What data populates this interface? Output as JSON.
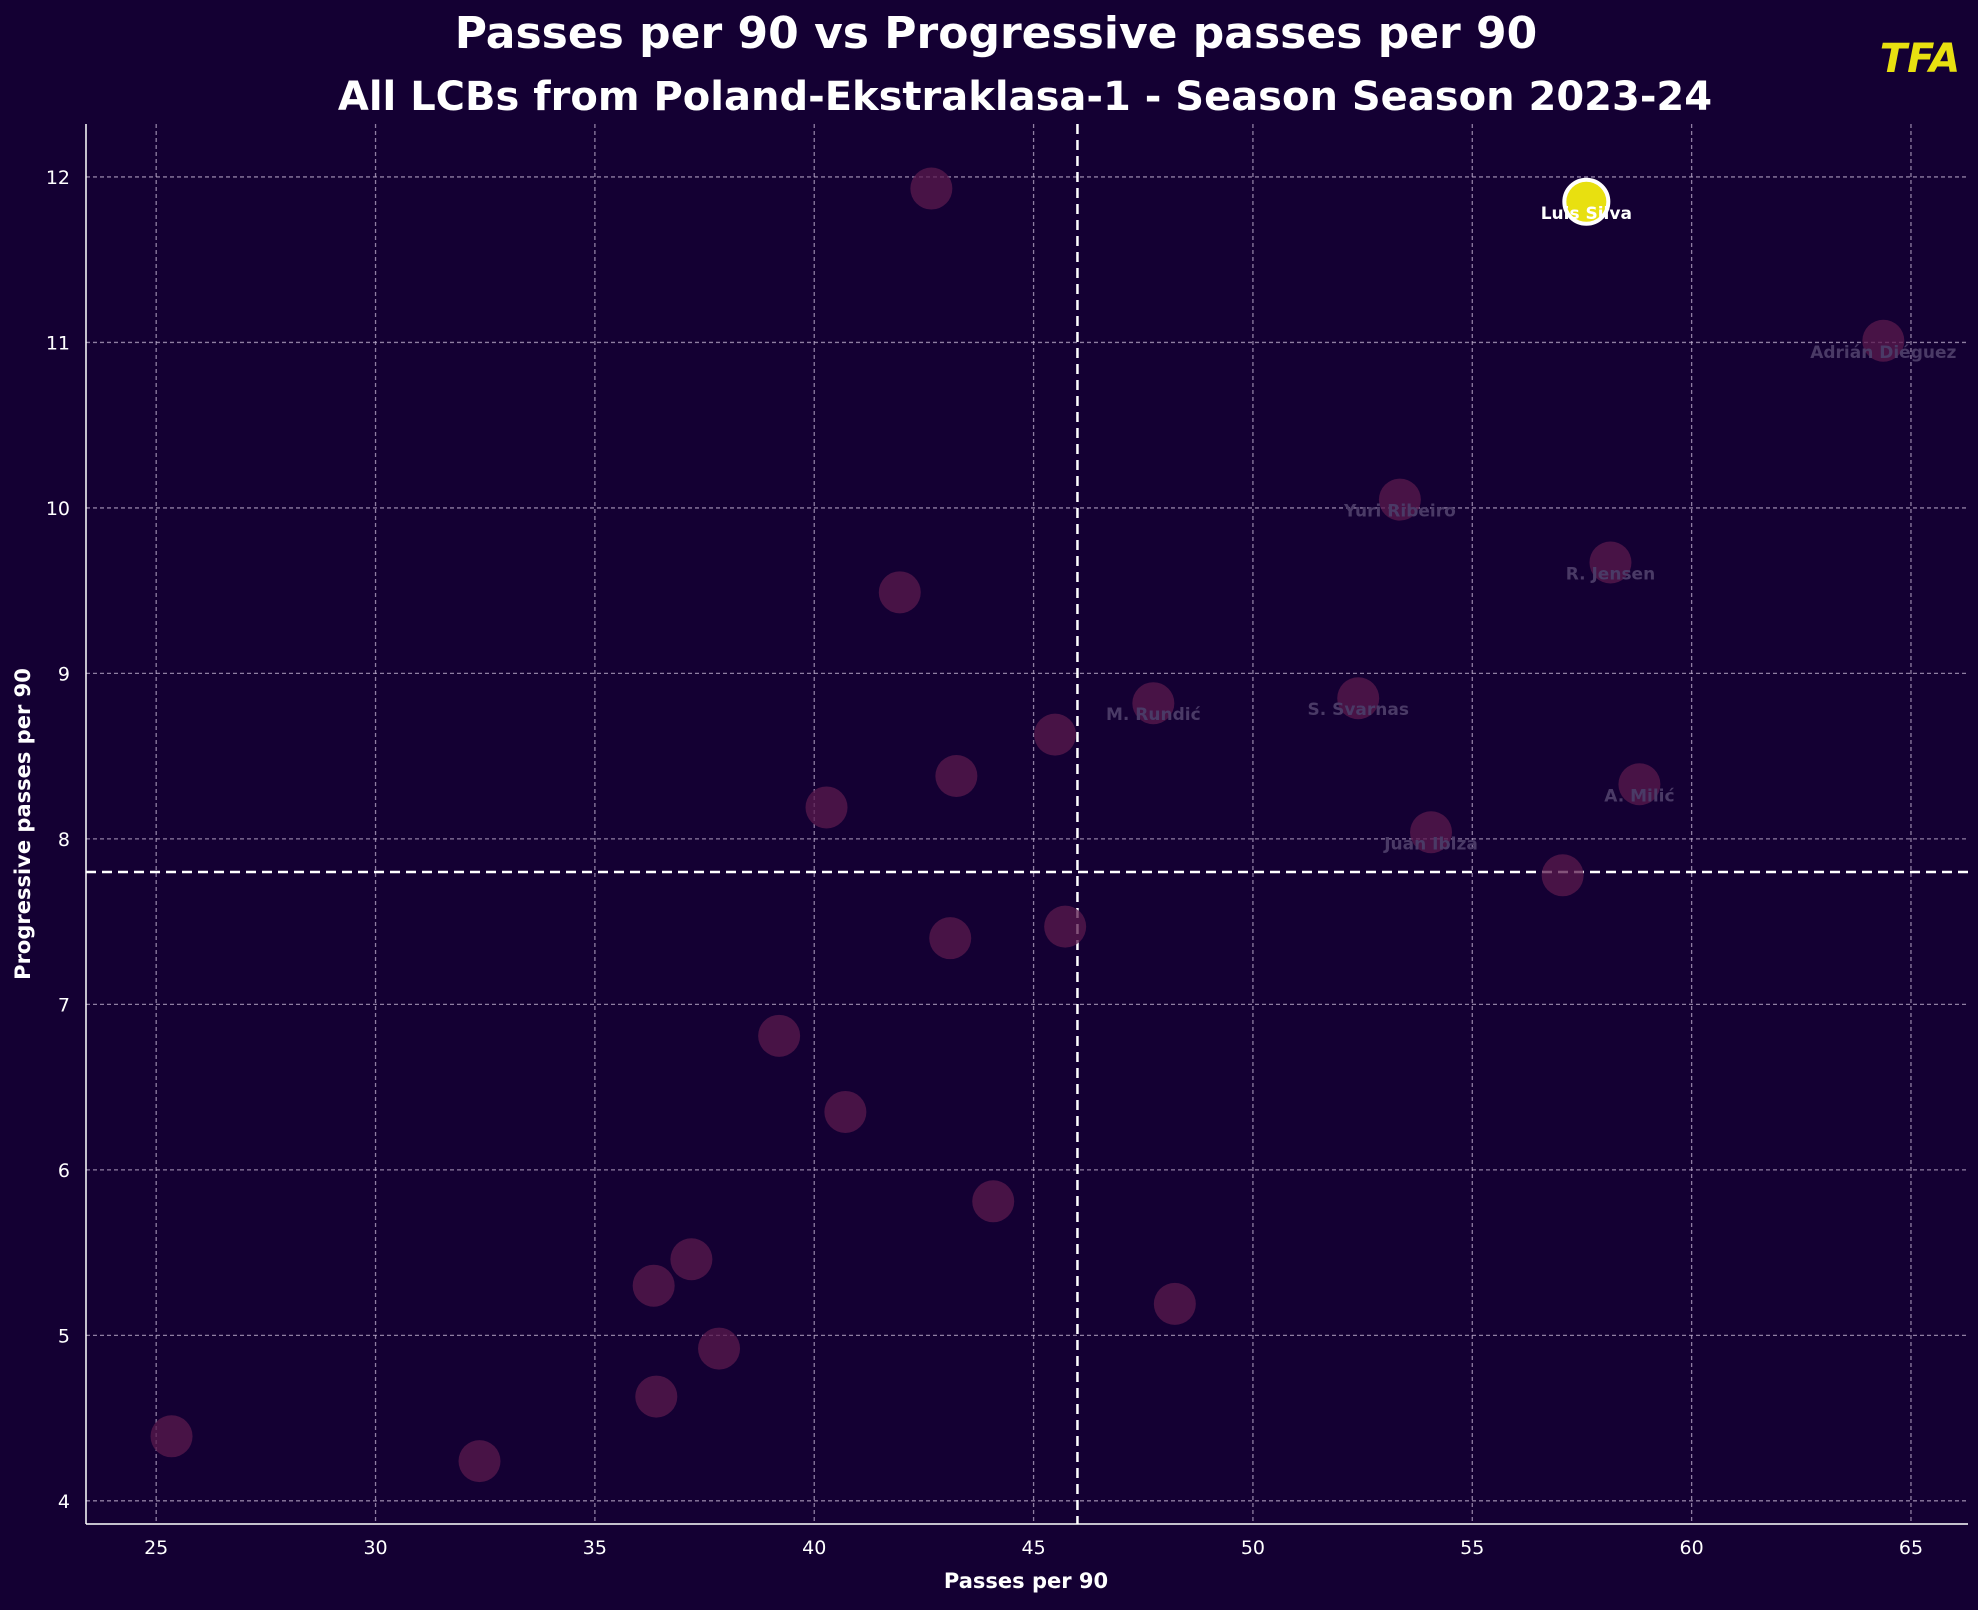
{
  "chart_data": {
    "type": "scatter",
    "title": "Passes per 90 vs Progressive passes per 90",
    "subtitle": "All LCBs from Poland-Ekstraklasa-1 - Season Season 2023-24",
    "xlabel": "Passes per 90",
    "ylabel": "Progressive passes per 90",
    "xlim": [
      23.4,
      66.3
    ],
    "ylim": [
      3.86,
      12.32
    ],
    "xticks": [
      25,
      30,
      35,
      40,
      45,
      50,
      55,
      60,
      65
    ],
    "yticks": [
      4,
      5,
      6,
      7,
      8,
      9,
      10,
      11,
      12
    ],
    "grid": true,
    "mean_x": 46.0,
    "mean_y": 7.8,
    "logo": "TFA",
    "colors": {
      "background": "#140033",
      "point": "#5a1a4e",
      "highlight": "#e8e010",
      "label": "#4a3a66",
      "text": "#ffffff"
    },
    "points": [
      {
        "x": 57.6,
        "y": 11.85,
        "label": "Luis Silva",
        "highlight": true
      },
      {
        "x": 42.67,
        "y": 11.93,
        "label": ""
      },
      {
        "x": 64.37,
        "y": 11.01,
        "label": "Adrián Diéguez"
      },
      {
        "x": 53.35,
        "y": 10.05,
        "label": "Yuri Ribeiro"
      },
      {
        "x": 58.15,
        "y": 9.67,
        "label": "R. Jensen"
      },
      {
        "x": 41.95,
        "y": 9.49,
        "label": ""
      },
      {
        "x": 47.73,
        "y": 8.82,
        "label": "M. Rundić"
      },
      {
        "x": 52.4,
        "y": 8.85,
        "label": "S. Svarnas"
      },
      {
        "x": 45.49,
        "y": 8.63,
        "label": ""
      },
      {
        "x": 43.24,
        "y": 8.38,
        "label": ""
      },
      {
        "x": 58.81,
        "y": 8.33,
        "label": "A. Milić"
      },
      {
        "x": 40.28,
        "y": 8.19,
        "label": ""
      },
      {
        "x": 54.06,
        "y": 8.04,
        "label": "Juan Ibiza"
      },
      {
        "x": 57.06,
        "y": 7.78,
        "label": ""
      },
      {
        "x": 45.72,
        "y": 7.47,
        "label": ""
      },
      {
        "x": 43.1,
        "y": 7.4,
        "label": ""
      },
      {
        "x": 39.2,
        "y": 6.81,
        "label": ""
      },
      {
        "x": 40.71,
        "y": 6.35,
        "label": ""
      },
      {
        "x": 44.08,
        "y": 5.81,
        "label": ""
      },
      {
        "x": 37.2,
        "y": 5.46,
        "label": ""
      },
      {
        "x": 36.34,
        "y": 5.3,
        "label": ""
      },
      {
        "x": 48.22,
        "y": 5.19,
        "label": ""
      },
      {
        "x": 37.83,
        "y": 4.92,
        "label": ""
      },
      {
        "x": 36.4,
        "y": 4.63,
        "label": ""
      },
      {
        "x": 25.35,
        "y": 4.39,
        "label": ""
      },
      {
        "x": 32.37,
        "y": 4.24,
        "label": ""
      }
    ]
  }
}
